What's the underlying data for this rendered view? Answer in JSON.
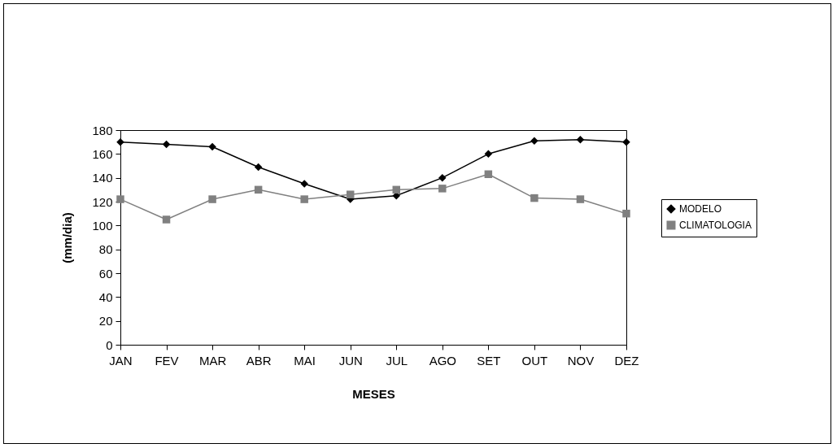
{
  "chart_data": {
    "type": "line",
    "xlabel": "MESES",
    "ylabel": "(mm/dia)",
    "categories": [
      "JAN",
      "FEV",
      "MAR",
      "ABR",
      "MAI",
      "JUN",
      "JUL",
      "AGO",
      "SET",
      "OUT",
      "NOV",
      "DEZ"
    ],
    "series": [
      {
        "name": "MODELO",
        "color": "#000000",
        "marker": "diamond",
        "values": [
          170,
          168,
          166,
          149,
          135,
          122,
          125,
          140,
          160,
          171,
          172,
          170
        ]
      },
      {
        "name": "CLIMATOLOGIA",
        "color": "#808080",
        "marker": "square",
        "values": [
          122,
          105,
          122,
          130,
          122,
          126,
          130,
          131,
          143,
          123,
          122,
          110
        ]
      }
    ],
    "ylim": [
      0,
      180
    ],
    "yticks": [
      0,
      20,
      40,
      60,
      80,
      100,
      120,
      140,
      160,
      180
    ],
    "grid": false,
    "legend": "right",
    "line_style": "solid"
  }
}
